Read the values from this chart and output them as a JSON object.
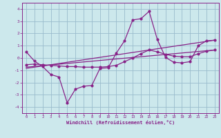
{
  "xlabel": "Windchill (Refroidissement éolien,°C)",
  "xlim": [
    -0.5,
    23.5
  ],
  "ylim": [
    -4.5,
    4.5
  ],
  "xticks": [
    0,
    1,
    2,
    3,
    4,
    5,
    6,
    7,
    8,
    9,
    10,
    11,
    12,
    13,
    14,
    15,
    16,
    17,
    18,
    19,
    20,
    21,
    22,
    23
  ],
  "yticks": [
    -4,
    -3,
    -2,
    -1,
    0,
    1,
    2,
    3,
    4
  ],
  "bg_color": "#cce8ec",
  "line_color": "#882288",
  "grid_color": "#99bbcc",
  "line1_x": [
    0,
    1,
    2,
    3,
    4,
    5,
    6,
    7,
    8,
    9,
    10,
    11,
    12,
    13,
    14,
    15,
    16,
    17,
    18,
    19,
    20,
    21,
    22,
    23
  ],
  "line1_y": [
    0.5,
    -0.25,
    -0.7,
    -1.35,
    -1.55,
    -3.65,
    -2.55,
    -2.3,
    -2.25,
    -0.85,
    -0.8,
    0.4,
    1.4,
    3.1,
    3.2,
    3.8,
    1.5,
    0.05,
    -0.35,
    -0.4,
    -0.3,
    1.0,
    1.4,
    1.45
  ],
  "line2_x": [
    0,
    1,
    2,
    3,
    4,
    5,
    6,
    7,
    8,
    9,
    10,
    11,
    12,
    13,
    14,
    15,
    16,
    17,
    18,
    19,
    20,
    21,
    22,
    23
  ],
  "line2_y": [
    -0.55,
    -0.5,
    -0.55,
    -0.6,
    -0.65,
    -0.7,
    -0.7,
    -0.75,
    -0.75,
    -0.75,
    -0.7,
    -0.6,
    -0.3,
    0.0,
    0.35,
    0.65,
    0.5,
    0.3,
    0.15,
    0.1,
    0.1,
    0.35,
    0.55,
    0.65
  ],
  "line3_x": [
    0,
    23
  ],
  "line3_y": [
    -0.75,
    0.65
  ],
  "line4_x": [
    0,
    23
  ],
  "line4_y": [
    -0.85,
    1.45
  ]
}
